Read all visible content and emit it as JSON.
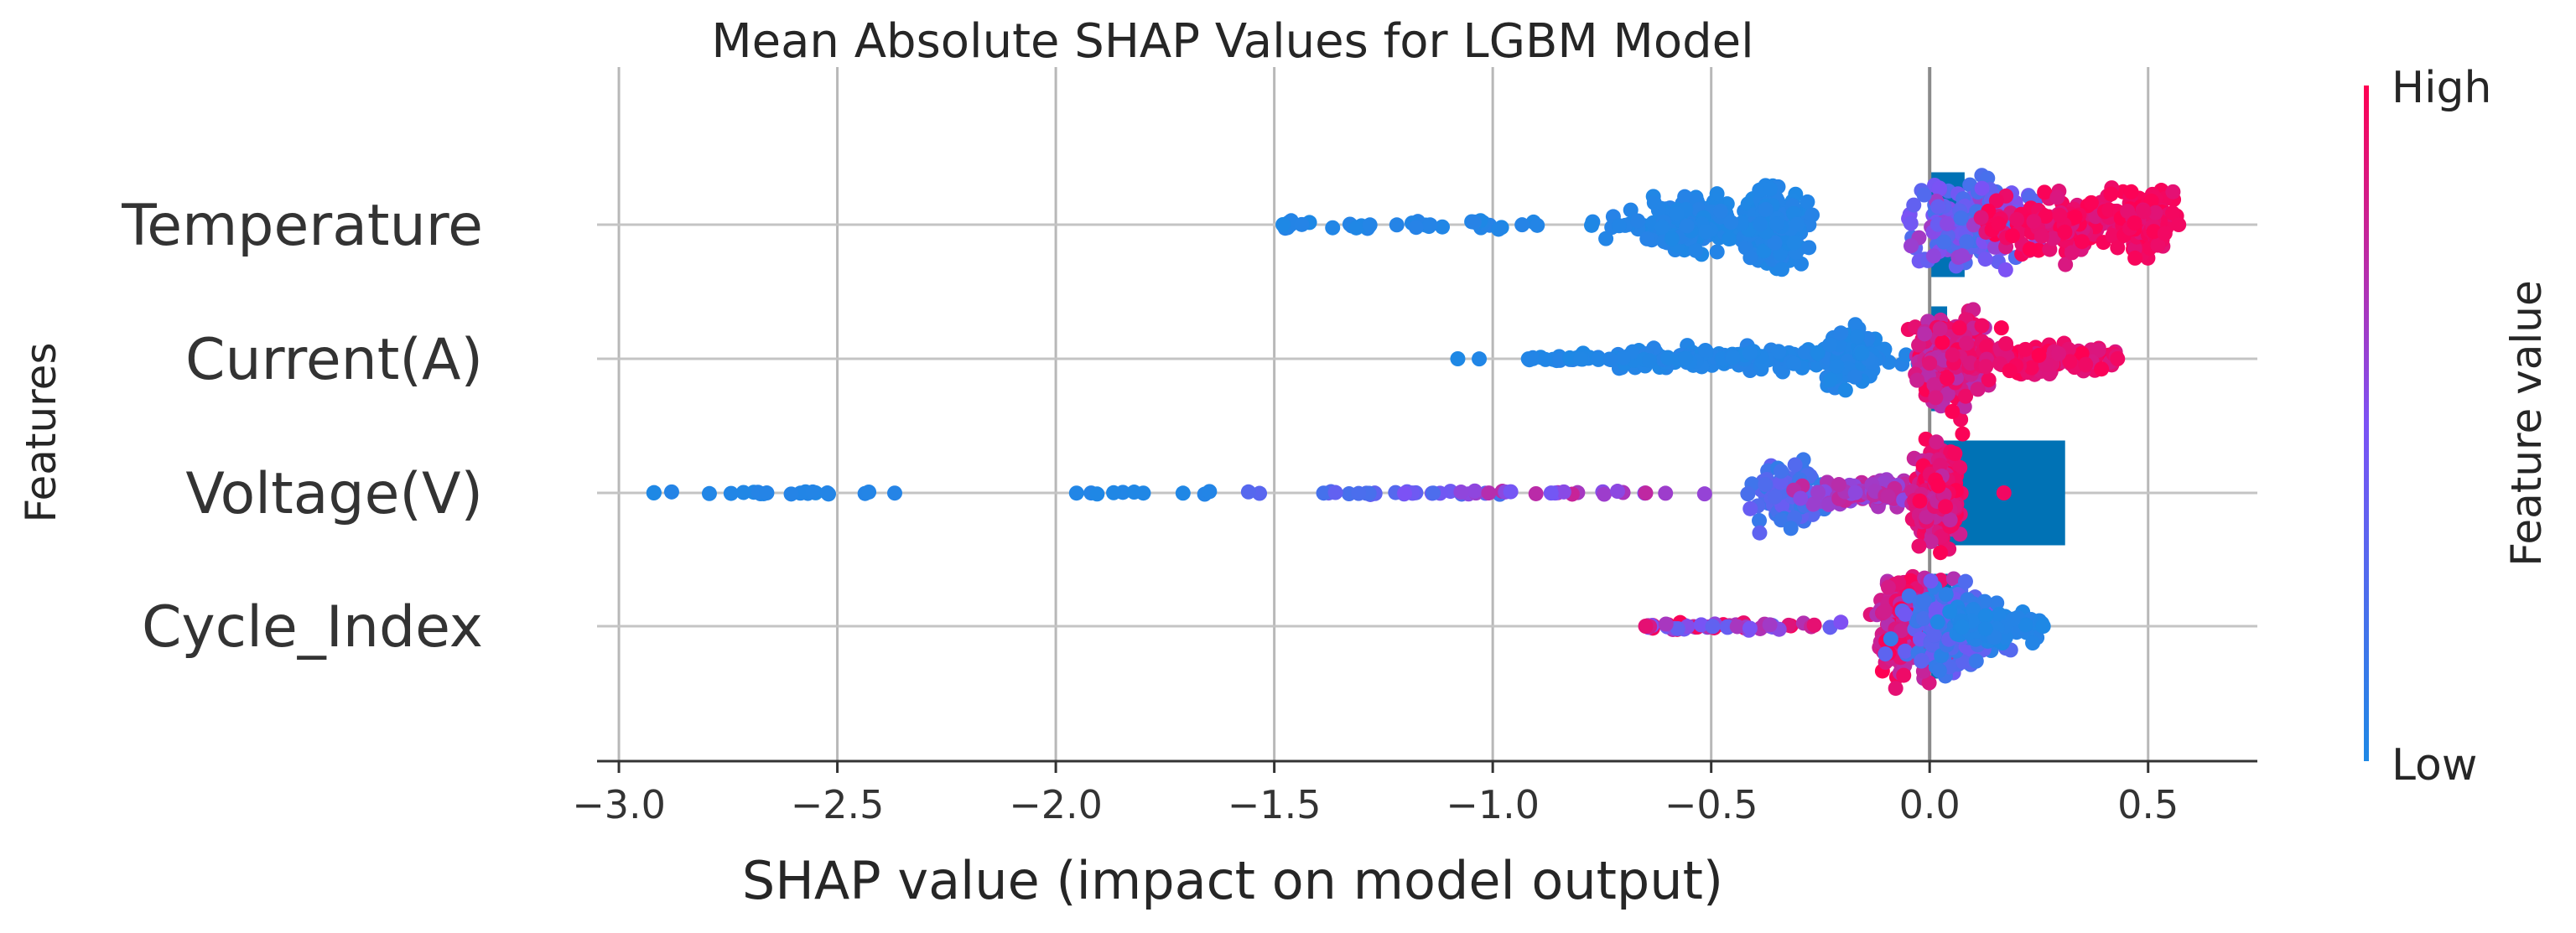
{
  "chart_data": {
    "type": "scatter",
    "subtype": "shap-beeswarm-with-mean-abs-bars",
    "title": "Mean Absolute SHAP Values for LGBM Model",
    "xlabel": "SHAP value (impact on model output)",
    "ylabel": "Features",
    "xlim": [
      -3.05,
      0.75
    ],
    "xticks": [
      -3.0,
      -2.5,
      -2.0,
      -1.5,
      -1.0,
      -0.5,
      0.0,
      0.5
    ],
    "xtick_labels": [
      "−3.0",
      "−2.5",
      "−2.0",
      "−1.5",
      "−1.0",
      "−0.5",
      "0.0",
      "0.5"
    ],
    "grid": true,
    "colorbar": {
      "label": "Feature value",
      "high_label": "High",
      "low_label": "Low",
      "low_color": "#1e88e5",
      "high_color": "#ff0052"
    },
    "features": [
      "Temperature",
      "Current(A)",
      "Voltage(V)",
      "Cycle_Index"
    ],
    "mean_abs_shap": [
      {
        "feature": "Temperature",
        "value": 0.08
      },
      {
        "feature": "Current(A)",
        "value": 0.04
      },
      {
        "feature": "Voltage(V)",
        "value": 0.31
      },
      {
        "feature": "Cycle_Index",
        "value": 0.05
      }
    ],
    "bar_color": "#0072b5",
    "shap_ranges": [
      {
        "feature": "Temperature",
        "min": -1.48,
        "max": 0.57
      },
      {
        "feature": "Current(A)",
        "min": -1.08,
        "max": 0.43
      },
      {
        "feature": "Voltage(V)",
        "min": -2.92,
        "max": 0.17
      },
      {
        "feature": "Cycle_Index",
        "min": -0.65,
        "max": 0.26
      }
    ],
    "clusters": [
      {
        "feature": "Temperature",
        "center": -0.55,
        "spread": 0.06,
        "width": 0.9,
        "n": 150,
        "low": 0.95,
        "high": 1.0
      },
      {
        "feature": "Temperature",
        "center": -0.35,
        "spread": 0.035,
        "width": 1.2,
        "n": 180,
        "low": 0.95,
        "high": 1.0
      },
      {
        "feature": "Temperature",
        "center": -1.1,
        "spread": 0.35,
        "width": 0.15,
        "n": 50,
        "low": 0.95,
        "high": 1.0
      },
      {
        "feature": "Temperature",
        "center": 0.1,
        "spread": 0.07,
        "width": 1.3,
        "n": 180,
        "low": 0.35,
        "high": 0.8
      },
      {
        "feature": "Temperature",
        "center": 0.3,
        "spread": 0.08,
        "width": 0.9,
        "n": 150,
        "low": 0.0,
        "high": 0.15
      },
      {
        "feature": "Temperature",
        "center": 0.49,
        "spread": 0.04,
        "width": 1.0,
        "n": 110,
        "low": 0.0,
        "high": 0.12
      },
      {
        "feature": "Current(A)",
        "center": -0.45,
        "spread": 0.18,
        "width": 0.35,
        "n": 160,
        "low": 0.95,
        "high": 1.0
      },
      {
        "feature": "Current(A)",
        "center": -0.18,
        "spread": 0.03,
        "width": 0.9,
        "n": 80,
        "low": 0.95,
        "high": 1.0
      },
      {
        "feature": "Current(A)",
        "center": -0.8,
        "spread": 0.12,
        "width": 0.1,
        "n": 30,
        "low": 0.95,
        "high": 1.0
      },
      {
        "feature": "Current(A)",
        "center": 0.05,
        "spread": 0.04,
        "width": 1.4,
        "n": 260,
        "low": 0.0,
        "high": 0.3
      },
      {
        "feature": "Current(A)",
        "center": 0.25,
        "spread": 0.09,
        "width": 0.45,
        "n": 160,
        "low": 0.0,
        "high": 0.15
      },
      {
        "feature": "Voltage(V)",
        "center": -2.6,
        "spread": 0.2,
        "width": 0.05,
        "n": 22,
        "low": 0.96,
        "high": 1.0
      },
      {
        "feature": "Voltage(V)",
        "center": -1.8,
        "spread": 0.1,
        "width": 0.05,
        "n": 10,
        "low": 0.96,
        "high": 1.0
      },
      {
        "feature": "Voltage(V)",
        "center": -1.25,
        "spread": 0.14,
        "width": 0.05,
        "n": 26,
        "low": 0.55,
        "high": 0.8
      },
      {
        "feature": "Voltage(V)",
        "center": -0.8,
        "spread": 0.15,
        "width": 0.05,
        "n": 24,
        "low": 0.2,
        "high": 0.6
      },
      {
        "feature": "Voltage(V)",
        "center": -0.32,
        "spread": 0.04,
        "width": 1.1,
        "n": 110,
        "low": 0.6,
        "high": 0.9
      },
      {
        "feature": "Voltage(V)",
        "center": -0.12,
        "spread": 0.08,
        "width": 0.4,
        "n": 110,
        "low": 0.2,
        "high": 0.45
      },
      {
        "feature": "Voltage(V)",
        "center": 0.02,
        "spread": 0.025,
        "width": 1.5,
        "n": 260,
        "low": 0.0,
        "high": 0.25
      },
      {
        "feature": "Cycle_Index",
        "center": -0.45,
        "spread": 0.12,
        "width": 0.12,
        "n": 60,
        "low": 0.0,
        "high": 0.7
      },
      {
        "feature": "Cycle_Index",
        "center": -0.03,
        "spread": 0.04,
        "width": 1.5,
        "n": 280,
        "low": 0.0,
        "high": 0.3
      },
      {
        "feature": "Cycle_Index",
        "center": 0.05,
        "spread": 0.05,
        "width": 1.3,
        "n": 200,
        "low": 0.55,
        "high": 0.95
      },
      {
        "feature": "Cycle_Index",
        "center": 0.15,
        "spread": 0.06,
        "width": 0.5,
        "n": 90,
        "low": 0.95,
        "high": 1.0
      }
    ]
  }
}
